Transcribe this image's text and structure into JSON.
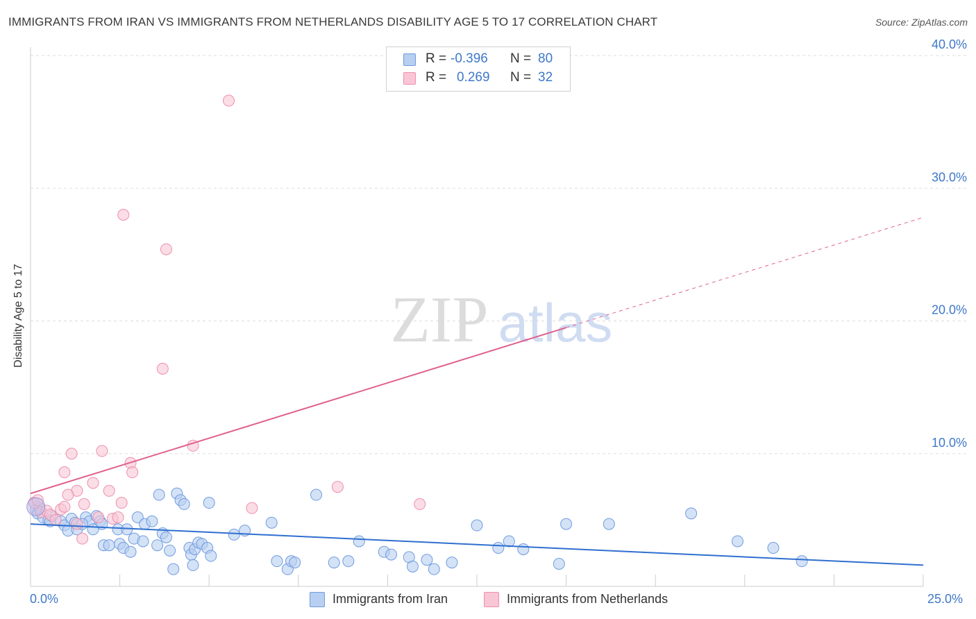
{
  "title": "IMMIGRANTS FROM IRAN VS IMMIGRANTS FROM NETHERLANDS DISABILITY AGE 5 TO 17 CORRELATION CHART",
  "source": "Source: ZipAtlas.com",
  "watermark": {
    "zip": "ZIP",
    "atlas": "atlas"
  },
  "stats": [
    {
      "r_label": "R =",
      "r_value": "-0.396",
      "n_label": "N =",
      "n_value": "80",
      "color": "#b7cff0",
      "border": "#6f9be0"
    },
    {
      "r_label": "R =",
      "r_value": "0.269",
      "n_label": "N =",
      "n_value": "32",
      "color": "#f9c6d5",
      "border": "#ee8fae"
    }
  ],
  "legend": [
    {
      "label": "Immigrants from Iran",
      "color": "#b7cff0",
      "border": "#6f9be0"
    },
    {
      "label": "Immigrants from Netherlands",
      "color": "#f9c6d5",
      "border": "#ee8fae"
    }
  ],
  "chart_data": {
    "type": "scatter",
    "title": "IMMIGRANTS FROM IRAN VS IMMIGRANTS FROM NETHERLANDS DISABILITY AGE 5 TO 17 CORRELATION CHART",
    "xlabel": "",
    "ylabel": "Disability Age 5 to 17",
    "xlim": [
      0,
      25
    ],
    "ylim": [
      0,
      40
    ],
    "x_tick_labels": [
      "0.0%",
      "25.0%"
    ],
    "y_ticks": [
      10,
      20,
      30,
      40
    ],
    "y_tick_labels": [
      "10.0%",
      "20.0%",
      "30.0%",
      "40.0%"
    ],
    "grid": true,
    "series": [
      {
        "name": "Immigrants from Iran",
        "color": "#6f9be0",
        "fill": "#b7cff0",
        "trend": {
          "x0": 0,
          "y0": 4.7,
          "x1": 25,
          "y1": 1.6,
          "color": "#2f6fcf"
        },
        "points": [
          [
            0.1,
            6.3
          ],
          [
            0.15,
            5.8
          ],
          [
            0.2,
            5.5
          ],
          [
            0.35,
            5.2
          ],
          [
            0.5,
            5.0
          ],
          [
            0.55,
            4.9
          ],
          [
            0.6,
            5.3
          ],
          [
            0.85,
            4.9
          ],
          [
            0.95,
            4.6
          ],
          [
            1.05,
            4.2
          ],
          [
            1.15,
            5.1
          ],
          [
            1.25,
            4.8
          ],
          [
            1.3,
            4.3
          ],
          [
            1.55,
            5.2
          ],
          [
            1.65,
            4.9
          ],
          [
            1.75,
            4.3
          ],
          [
            1.85,
            5.3
          ],
          [
            1.95,
            4.9
          ],
          [
            2.0,
            4.7
          ],
          [
            2.05,
            3.1
          ],
          [
            2.2,
            3.1
          ],
          [
            2.45,
            4.3
          ],
          [
            2.5,
            3.2
          ],
          [
            2.6,
            2.9
          ],
          [
            2.7,
            4.3
          ],
          [
            2.8,
            2.6
          ],
          [
            2.9,
            3.6
          ],
          [
            3.0,
            5.2
          ],
          [
            3.15,
            3.4
          ],
          [
            3.2,
            4.7
          ],
          [
            3.4,
            4.9
          ],
          [
            3.55,
            3.1
          ],
          [
            3.6,
            6.9
          ],
          [
            3.7,
            4.0
          ],
          [
            3.8,
            3.7
          ],
          [
            3.9,
            2.7
          ],
          [
            4.0,
            1.3
          ],
          [
            4.1,
            7.0
          ],
          [
            4.2,
            6.5
          ],
          [
            4.3,
            6.2
          ],
          [
            4.45,
            2.9
          ],
          [
            4.5,
            2.4
          ],
          [
            4.55,
            1.6
          ],
          [
            4.6,
            2.8
          ],
          [
            4.7,
            3.3
          ],
          [
            4.8,
            3.2
          ],
          [
            4.95,
            2.9
          ],
          [
            5.0,
            6.3
          ],
          [
            5.05,
            2.3
          ],
          [
            5.7,
            3.9
          ],
          [
            6.0,
            4.2
          ],
          [
            6.75,
            4.8
          ],
          [
            6.9,
            1.9
          ],
          [
            7.2,
            1.3
          ],
          [
            7.3,
            1.9
          ],
          [
            7.4,
            1.8
          ],
          [
            8.0,
            6.9
          ],
          [
            8.5,
            1.8
          ],
          [
            8.9,
            1.9
          ],
          [
            9.2,
            3.4
          ],
          [
            9.9,
            2.6
          ],
          [
            10.1,
            2.4
          ],
          [
            10.6,
            2.2
          ],
          [
            10.7,
            1.5
          ],
          [
            11.1,
            2.0
          ],
          [
            11.3,
            1.3
          ],
          [
            11.8,
            1.8
          ],
          [
            12.5,
            4.6
          ],
          [
            13.1,
            2.9
          ],
          [
            13.4,
            3.4
          ],
          [
            13.8,
            2.8
          ],
          [
            14.8,
            1.7
          ],
          [
            15.0,
            4.7
          ],
          [
            16.2,
            4.7
          ],
          [
            18.5,
            5.5
          ],
          [
            19.8,
            3.4
          ],
          [
            20.8,
            2.9
          ],
          [
            21.6,
            1.9
          ],
          [
            0.25,
            5.9
          ],
          [
            1.45,
            4.7
          ]
        ]
      },
      {
        "name": "Immigrants from Netherlands",
        "color": "#ee8fae",
        "fill": "#f9c6d5",
        "trend": {
          "x0": 0,
          "y0": 7.0,
          "x1": 15,
          "y1": 19.5,
          "color": "#e0608f",
          "dashed_to": {
            "x": 25,
            "y": 27.8
          }
        },
        "points": [
          [
            0.1,
            6.3
          ],
          [
            0.3,
            5.6
          ],
          [
            0.45,
            5.7
          ],
          [
            0.55,
            5.4
          ],
          [
            0.7,
            5.0
          ],
          [
            0.85,
            5.8
          ],
          [
            0.95,
            6.0
          ],
          [
            0.95,
            8.6
          ],
          [
            1.15,
            10.0
          ],
          [
            1.3,
            4.7
          ],
          [
            1.3,
            7.2
          ],
          [
            1.45,
            3.6
          ],
          [
            1.5,
            6.2
          ],
          [
            1.75,
            7.8
          ],
          [
            1.9,
            5.2
          ],
          [
            2.0,
            10.2
          ],
          [
            2.2,
            7.2
          ],
          [
            2.3,
            5.1
          ],
          [
            2.45,
            5.2
          ],
          [
            2.55,
            6.3
          ],
          [
            2.6,
            28.0
          ],
          [
            2.8,
            9.3
          ],
          [
            2.85,
            8.6
          ],
          [
            3.7,
            16.4
          ],
          [
            3.8,
            25.4
          ],
          [
            4.55,
            10.6
          ],
          [
            5.55,
            36.6
          ],
          [
            6.2,
            5.9
          ],
          [
            8.6,
            7.5
          ],
          [
            10.9,
            6.2
          ],
          [
            0.2,
            6.5
          ],
          [
            1.05,
            6.9
          ]
        ]
      }
    ]
  }
}
